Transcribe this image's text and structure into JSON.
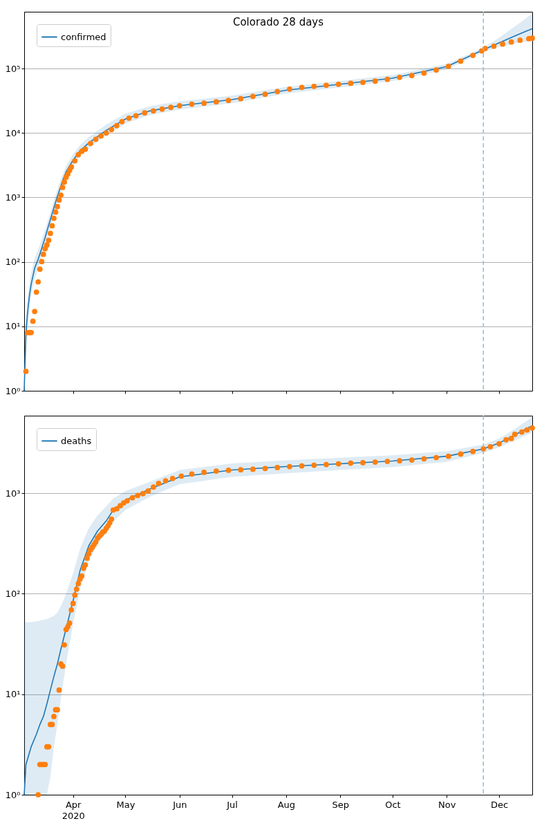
{
  "chart_data": [
    {
      "type": "line",
      "title": "Colorado 28 days",
      "log": true,
      "grid": "y",
      "legend": "top left",
      "tick_labels": "y",
      "xlim": [
        "2020-03-04",
        "2020-12-20"
      ],
      "xticks": [
        {
          "value": "2020-04-01",
          "label": null
        },
        {
          "value": "2020-05-01",
          "label": null
        },
        {
          "value": "2020-06-01",
          "label": null
        },
        {
          "value": "2020-07-01",
          "label": null
        },
        {
          "value": "2020-08-01",
          "label": null
        },
        {
          "value": "2020-09-01",
          "label": null
        },
        {
          "value": "2020-10-01",
          "label": null
        },
        {
          "value": "2020-11-01",
          "label": null
        },
        {
          "value": "2020-12-01",
          "label": null
        }
      ],
      "ylim": [
        1,
        760000
      ],
      "yticks": [
        {
          "value": 1,
          "label": "10⁰"
        },
        {
          "value": 10,
          "label": "10¹"
        },
        {
          "value": 100,
          "label": "10²"
        },
        {
          "value": 1000,
          "label": "10³"
        },
        {
          "value": 10000,
          "label": "10⁴"
        },
        {
          "value": 100000,
          "label": "10⁵"
        }
      ],
      "ref_lines": [
        {
          "axis": "x",
          "value": "2020-11-22",
          "color": "#8fbbd9",
          "line_style": "dashed"
        }
      ],
      "series": [
        {
          "type": "line",
          "name": "confirmed",
          "color": "#1f77b4",
          "x": [
            "2020-03-04",
            "2020-03-05",
            "2020-03-06",
            "2020-03-07",
            "2020-03-08",
            "2020-03-10",
            "2020-03-12",
            "2020-03-14",
            "2020-03-16",
            "2020-03-18",
            "2020-03-20",
            "2020-03-22",
            "2020-03-24",
            "2020-03-26",
            "2020-03-28",
            "2020-04-01",
            "2020-04-05",
            "2020-04-10",
            "2020-04-20",
            "2020-05-01",
            "2020-05-15",
            "2020-06-01",
            "2020-07-01",
            "2020-08-01",
            "2020-09-01",
            "2020-10-01",
            "2020-11-01",
            "2020-11-22",
            "2020-12-01",
            "2020-12-10",
            "2020-12-20"
          ],
          "values": [
            1,
            8,
            17,
            30,
            45,
            80,
            110,
            160,
            240,
            370,
            560,
            850,
            1250,
            1800,
            2500,
            3800,
            5300,
            7000,
            11000,
            16500,
            22000,
            26500,
            33000,
            46000,
            57000,
            71000,
            107000,
            195000,
            250000,
            320000,
            416000
          ],
          "lower": [
            1,
            4,
            10,
            19,
            30,
            55,
            80,
            120,
            180,
            280,
            430,
            660,
            1000,
            1450,
            2050,
            3100,
            4400,
            5800,
            9200,
            14000,
            19000,
            23000,
            29000,
            41000,
            51000,
            64000,
            97000,
            180000,
            215000,
            245000,
            270000
          ],
          "upper": [
            1.5,
            14,
            28,
            47,
            68,
            115,
            155,
            220,
            320,
            480,
            720,
            1100,
            1600,
            2250,
            3100,
            4700,
            6500,
            8600,
            13500,
            20000,
            26000,
            31000,
            38000,
            52000,
            64000,
            79000,
            118000,
            212000,
            300000,
            450000,
            710000
          ]
        },
        {
          "type": "scatter",
          "color": "#ff7f0e",
          "x": [
            "2020-03-05",
            "2020-03-06",
            "2020-03-07",
            "2020-03-08",
            "2020-03-09",
            "2020-03-10",
            "2020-03-11",
            "2020-03-12",
            "2020-03-13",
            "2020-03-14",
            "2020-03-15",
            "2020-03-16",
            "2020-03-17",
            "2020-03-18",
            "2020-03-19",
            "2020-03-20",
            "2020-03-21",
            "2020-03-22",
            "2020-03-23",
            "2020-03-24",
            "2020-03-25",
            "2020-03-26",
            "2020-03-27",
            "2020-03-28",
            "2020-03-29",
            "2020-03-30",
            "2020-03-31",
            "2020-04-02",
            "2020-04-04",
            "2020-04-06",
            "2020-04-08",
            "2020-04-11",
            "2020-04-14",
            "2020-04-17",
            "2020-04-20",
            "2020-04-23",
            "2020-04-26",
            "2020-04-29",
            "2020-05-03",
            "2020-05-07",
            "2020-05-12",
            "2020-05-17",
            "2020-05-22",
            "2020-05-27",
            "2020-06-01",
            "2020-06-08",
            "2020-06-15",
            "2020-06-22",
            "2020-06-29",
            "2020-07-06",
            "2020-07-13",
            "2020-07-20",
            "2020-07-27",
            "2020-08-03",
            "2020-08-10",
            "2020-08-17",
            "2020-08-24",
            "2020-08-31",
            "2020-09-07",
            "2020-09-14",
            "2020-09-21",
            "2020-09-28",
            "2020-10-05",
            "2020-10-12",
            "2020-10-19",
            "2020-10-26",
            "2020-11-02",
            "2020-11-09",
            "2020-11-16",
            "2020-11-21",
            "2020-11-23",
            "2020-11-28",
            "2020-12-03",
            "2020-12-08",
            "2020-12-13",
            "2020-12-18",
            "2020-12-20"
          ],
          "values": [
            2,
            8,
            8,
            8,
            12,
            17,
            34,
            49,
            77,
            101,
            131,
            160,
            183,
            216,
            277,
            363,
            475,
            591,
            720,
            912,
            1086,
            1430,
            1734,
            2061,
            2307,
            2627,
            2966,
            3700,
            4600,
            5200,
            5600,
            6900,
            8000,
            9000,
            10000,
            11300,
            13000,
            15000,
            17000,
            18500,
            20500,
            22000,
            23500,
            25000,
            26500,
            28000,
            29000,
            30500,
            32000,
            34000,
            37000,
            40000,
            44000,
            48000,
            51000,
            53000,
            55000,
            57000,
            59000,
            61000,
            64000,
            68000,
            73000,
            78000,
            85000,
            95000,
            108000,
            130000,
            160000,
            188000,
            205000,
            222000,
            240000,
            258000,
            275000,
            290000,
            296000
          ]
        }
      ]
    },
    {
      "type": "line",
      "log": true,
      "grid": "y",
      "legend": "top left",
      "xlim": [
        "2020-03-04",
        "2020-12-20"
      ],
      "xticks": [
        {
          "value": "2020-04-01",
          "label": "Apr\n2020"
        },
        {
          "value": "2020-05-01",
          "label": "May"
        },
        {
          "value": "2020-06-01",
          "label": "Jun"
        },
        {
          "value": "2020-07-01",
          "label": "Jul"
        },
        {
          "value": "2020-08-01",
          "label": "Aug"
        },
        {
          "value": "2020-09-01",
          "label": "Sep"
        },
        {
          "value": "2020-10-01",
          "label": "Oct"
        },
        {
          "value": "2020-11-01",
          "label": "Nov"
        },
        {
          "value": "2020-12-01",
          "label": "Dec"
        }
      ],
      "ylim": [
        1,
        5900
      ],
      "yticks": [
        {
          "value": 1,
          "label": "10⁰"
        },
        {
          "value": 10,
          "label": "10¹"
        },
        {
          "value": 100,
          "label": "10²"
        },
        {
          "value": 1000,
          "label": "10³"
        }
      ],
      "ref_lines": [
        {
          "axis": "x",
          "value": "2020-11-22",
          "color": "#8fbbd9",
          "line_style": "dashed"
        }
      ],
      "series": [
        {
          "type": "line",
          "name": "deaths",
          "color": "#1f77b4",
          "x": [
            "2020-03-04",
            "2020-03-05",
            "2020-03-08",
            "2020-03-11",
            "2020-03-13",
            "2020-03-15",
            "2020-03-17",
            "2020-03-19",
            "2020-03-21",
            "2020-03-23",
            "2020-03-25",
            "2020-03-28",
            "2020-04-01",
            "2020-04-05",
            "2020-04-10",
            "2020-04-15",
            "2020-04-20",
            "2020-04-24",
            "2020-05-01",
            "2020-05-15",
            "2020-06-01",
            "2020-07-01",
            "2020-08-01",
            "2020-09-01",
            "2020-10-01",
            "2020-11-01",
            "2020-11-22",
            "2020-12-01",
            "2020-12-10",
            "2020-12-20"
          ],
          "values": [
            1,
            2,
            3,
            4,
            5,
            6,
            8,
            11,
            15,
            20,
            28,
            45,
            85,
            170,
            300,
            420,
            530,
            680,
            850,
            1100,
            1450,
            1700,
            1840,
            1960,
            2090,
            2330,
            2760,
            3150,
            3800,
            4700
          ],
          "lower": [
            1,
            1,
            1,
            1,
            1,
            1,
            1,
            1.5,
            3,
            5,
            9,
            20,
            50,
            110,
            210,
            310,
            400,
            520,
            680,
            920,
            1230,
            1450,
            1580,
            1700,
            1820,
            2050,
            2520,
            2850,
            3350,
            4000
          ],
          "upper": [
            52,
            52,
            52,
            53,
            54,
            55,
            56,
            58,
            60,
            65,
            75,
            100,
            160,
            280,
            450,
            600,
            740,
            880,
            1050,
            1300,
            1700,
            1980,
            2120,
            2250,
            2380,
            2620,
            3050,
            3500,
            4350,
            5700
          ]
        },
        {
          "type": "scatter",
          "color": "#ff7f0e",
          "x": [
            "2020-03-12",
            "2020-03-13",
            "2020-03-14",
            "2020-03-15",
            "2020-03-16",
            "2020-03-17",
            "2020-03-18",
            "2020-03-19",
            "2020-03-20",
            "2020-03-21",
            "2020-03-22",
            "2020-03-23",
            "2020-03-24",
            "2020-03-25",
            "2020-03-26",
            "2020-03-27",
            "2020-03-28",
            "2020-03-29",
            "2020-03-30",
            "2020-03-31",
            "2020-04-01",
            "2020-04-02",
            "2020-04-03",
            "2020-04-04",
            "2020-04-05",
            "2020-04-06",
            "2020-04-07",
            "2020-04-08",
            "2020-04-09",
            "2020-04-10",
            "2020-04-11",
            "2020-04-12",
            "2020-04-13",
            "2020-04-14",
            "2020-04-15",
            "2020-04-16",
            "2020-04-17",
            "2020-04-18",
            "2020-04-19",
            "2020-04-20",
            "2020-04-21",
            "2020-04-22",
            "2020-04-23",
            "2020-04-24",
            "2020-04-26",
            "2020-04-28",
            "2020-04-30",
            "2020-05-02",
            "2020-05-05",
            "2020-05-08",
            "2020-05-11",
            "2020-05-14",
            "2020-05-17",
            "2020-05-20",
            "2020-05-24",
            "2020-05-28",
            "2020-06-02",
            "2020-06-08",
            "2020-06-15",
            "2020-06-22",
            "2020-06-29",
            "2020-07-06",
            "2020-07-13",
            "2020-07-20",
            "2020-07-27",
            "2020-08-03",
            "2020-08-10",
            "2020-08-17",
            "2020-08-24",
            "2020-08-31",
            "2020-09-07",
            "2020-09-14",
            "2020-09-21",
            "2020-09-28",
            "2020-10-05",
            "2020-10-12",
            "2020-10-19",
            "2020-10-26",
            "2020-11-02",
            "2020-11-09",
            "2020-11-16",
            "2020-11-22",
            "2020-11-26",
            "2020-12-01",
            "2020-12-05",
            "2020-12-08",
            "2020-12-10",
            "2020-12-14",
            "2020-12-17",
            "2020-12-20"
          ],
          "values": [
            1,
            2,
            2,
            2,
            2,
            3,
            3,
            5,
            5,
            6,
            7,
            7,
            11,
            20,
            19,
            31,
            44,
            47,
            51,
            69,
            80,
            97,
            111,
            126,
            140,
            150,
            179,
            193,
            226,
            250,
            274,
            290,
            308,
            327,
            357,
            374,
            389,
            411,
            420,
            447,
            473,
            508,
            552,
            680,
            700,
            750,
            800,
            840,
            900,
            950,
            990,
            1050,
            1150,
            1250,
            1330,
            1400,
            1480,
            1550,
            1610,
            1660,
            1690,
            1710,
            1730,
            1760,
            1800,
            1840,
            1870,
            1900,
            1930,
            1960,
            1990,
            2010,
            2040,
            2070,
            2100,
            2140,
            2200,
            2260,
            2330,
            2450,
            2600,
            2760,
            2900,
            3100,
            3400,
            3500,
            3850,
            4050,
            4250,
            4450
          ]
        }
      ]
    }
  ]
}
